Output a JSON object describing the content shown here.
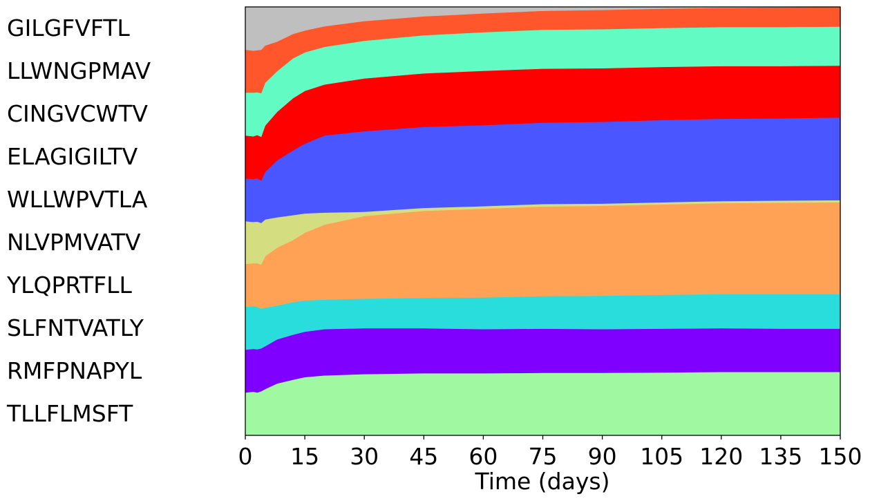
{
  "chart_data": {
    "type": "area",
    "title": "",
    "xlabel": "Time (days)",
    "ylabel": "",
    "xlim": [
      0,
      150
    ],
    "ylim": [
      0,
      1
    ],
    "x_ticks": [
      "0",
      "15",
      "30",
      "45",
      "60",
      "75",
      "90",
      "105",
      "120",
      "135",
      "150"
    ],
    "x": [
      0,
      2,
      3,
      4,
      5,
      8,
      12,
      15,
      20,
      30,
      45,
      60,
      75,
      90,
      105,
      120,
      135,
      150
    ],
    "stack_order": "bottom-to-top",
    "series": [
      {
        "name": "TLLFLMSFT",
        "color": "#a0f9a0",
        "values": [
          0.1,
          0.102,
          0.1,
          0.103,
          0.108,
          0.121,
          0.13,
          0.136,
          0.14,
          0.143,
          0.145,
          0.145,
          0.146,
          0.146,
          0.147,
          0.148,
          0.148,
          0.148
        ]
      },
      {
        "name": "RMFPNAPYL",
        "color": "#8000ff",
        "values": [
          0.1,
          0.1,
          0.101,
          0.1,
          0.1,
          0.103,
          0.105,
          0.106,
          0.108,
          0.107,
          0.105,
          0.103,
          0.103,
          0.102,
          0.102,
          0.102,
          0.101,
          0.101
        ]
      },
      {
        "name": "SLFNTVATLY",
        "color": "#2adddd",
        "values": [
          0.1,
          0.1,
          0.099,
          0.093,
          0.09,
          0.079,
          0.076,
          0.073,
          0.069,
          0.069,
          0.071,
          0.074,
          0.076,
          0.078,
          0.079,
          0.08,
          0.081,
          0.081
        ]
      },
      {
        "name": "YLQPRTFLL",
        "color": "#ffa256",
        "values": [
          0.1,
          0.1,
          0.102,
          0.103,
          0.12,
          0.135,
          0.145,
          0.158,
          0.175,
          0.193,
          0.203,
          0.207,
          0.209,
          0.21,
          0.211,
          0.212,
          0.213,
          0.214
        ]
      },
      {
        "name": "NLVPMVATV",
        "color": "#d4dd80",
        "values": [
          0.1,
          0.096,
          0.097,
          0.097,
          0.086,
          0.071,
          0.058,
          0.045,
          0.028,
          0.01,
          0.007,
          0.006,
          0.006,
          0.005,
          0.005,
          0.005,
          0.005,
          0.005
        ]
      },
      {
        "name": "WLLWPVTLA",
        "color": "#4a56ff",
        "values": [
          0.1,
          0.1,
          0.101,
          0.099,
          0.111,
          0.133,
          0.151,
          0.163,
          0.18,
          0.188,
          0.189,
          0.189,
          0.19,
          0.191,
          0.192,
          0.192,
          0.192,
          0.193
        ]
      },
      {
        "name": "ELAGIGILTV",
        "color": "#ff0000",
        "values": [
          0.1,
          0.1,
          0.101,
          0.102,
          0.108,
          0.113,
          0.122,
          0.123,
          0.119,
          0.123,
          0.125,
          0.127,
          0.126,
          0.125,
          0.124,
          0.123,
          0.122,
          0.121
        ]
      },
      {
        "name": "CINGVCWTV",
        "color": "#62fbc4",
        "values": [
          0.1,
          0.102,
          0.1,
          0.102,
          0.1,
          0.095,
          0.093,
          0.09,
          0.088,
          0.088,
          0.089,
          0.09,
          0.091,
          0.091,
          0.091,
          0.091,
          0.091,
          0.091
        ]
      },
      {
        "name": "LLWNGPMAV",
        "color": "#ff562c",
        "values": [
          0.1,
          0.098,
          0.098,
          0.101,
          0.087,
          0.069,
          0.057,
          0.051,
          0.048,
          0.046,
          0.044,
          0.044,
          0.044,
          0.045,
          0.045,
          0.045,
          0.046,
          0.046
        ]
      },
      {
        "name": "GILGFVFTL",
        "color": "#bfbfbf",
        "values": [
          0.1,
          0.102,
          0.101,
          0.1,
          0.09,
          0.081,
          0.063,
          0.055,
          0.045,
          0.033,
          0.022,
          0.015,
          0.009,
          0.007,
          0.004,
          0.002,
          0.001,
          0.0
        ]
      }
    ]
  }
}
